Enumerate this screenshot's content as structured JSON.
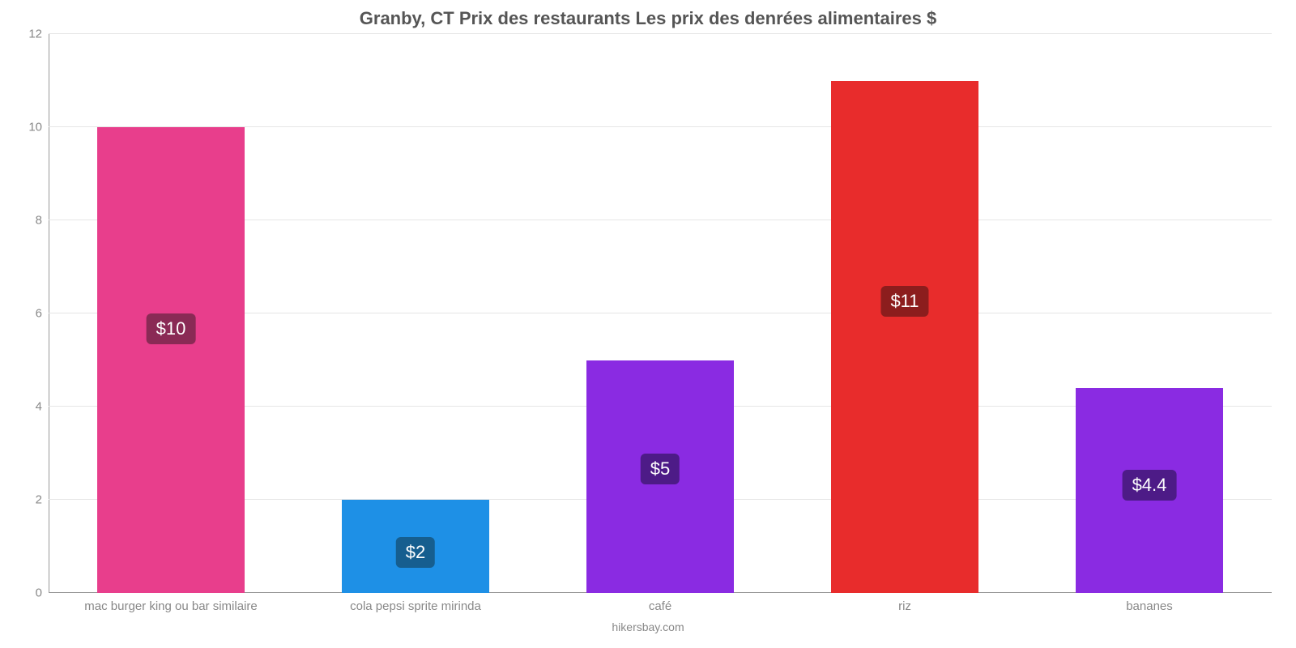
{
  "chart": {
    "type": "bar",
    "title": "Granby, CT Prix des restaurants Les prix des denrées alimentaires $",
    "title_fontsize": 22,
    "title_color": "#555555",
    "source": "hikersbay.com",
    "background_color": "#ffffff",
    "grid_color": "#e6e6e6",
    "axis_color": "#999999",
    "tick_label_color": "#888888",
    "tick_fontsize": 15,
    "ylim": [
      0,
      12
    ],
    "ytick_step": 2,
    "bar_width_pct": 12,
    "categories": [
      "mac burger king ou bar similaire",
      "cola pepsi sprite mirinda",
      "café",
      "riz",
      "bananes"
    ],
    "values": [
      10,
      2,
      5,
      11,
      4.4
    ],
    "value_labels": [
      "$10",
      "$2",
      "$5",
      "$11",
      "$4.4"
    ],
    "bar_colors": [
      "#e83e8c",
      "#1e90e6",
      "#8a2be2",
      "#e82c2c",
      "#8a2be2"
    ],
    "badge_colors": [
      "#8a2a55",
      "#165e8f",
      "#4d1b87",
      "#8c1d1d",
      "#4d1b87"
    ],
    "value_label_fontsize": 22
  }
}
